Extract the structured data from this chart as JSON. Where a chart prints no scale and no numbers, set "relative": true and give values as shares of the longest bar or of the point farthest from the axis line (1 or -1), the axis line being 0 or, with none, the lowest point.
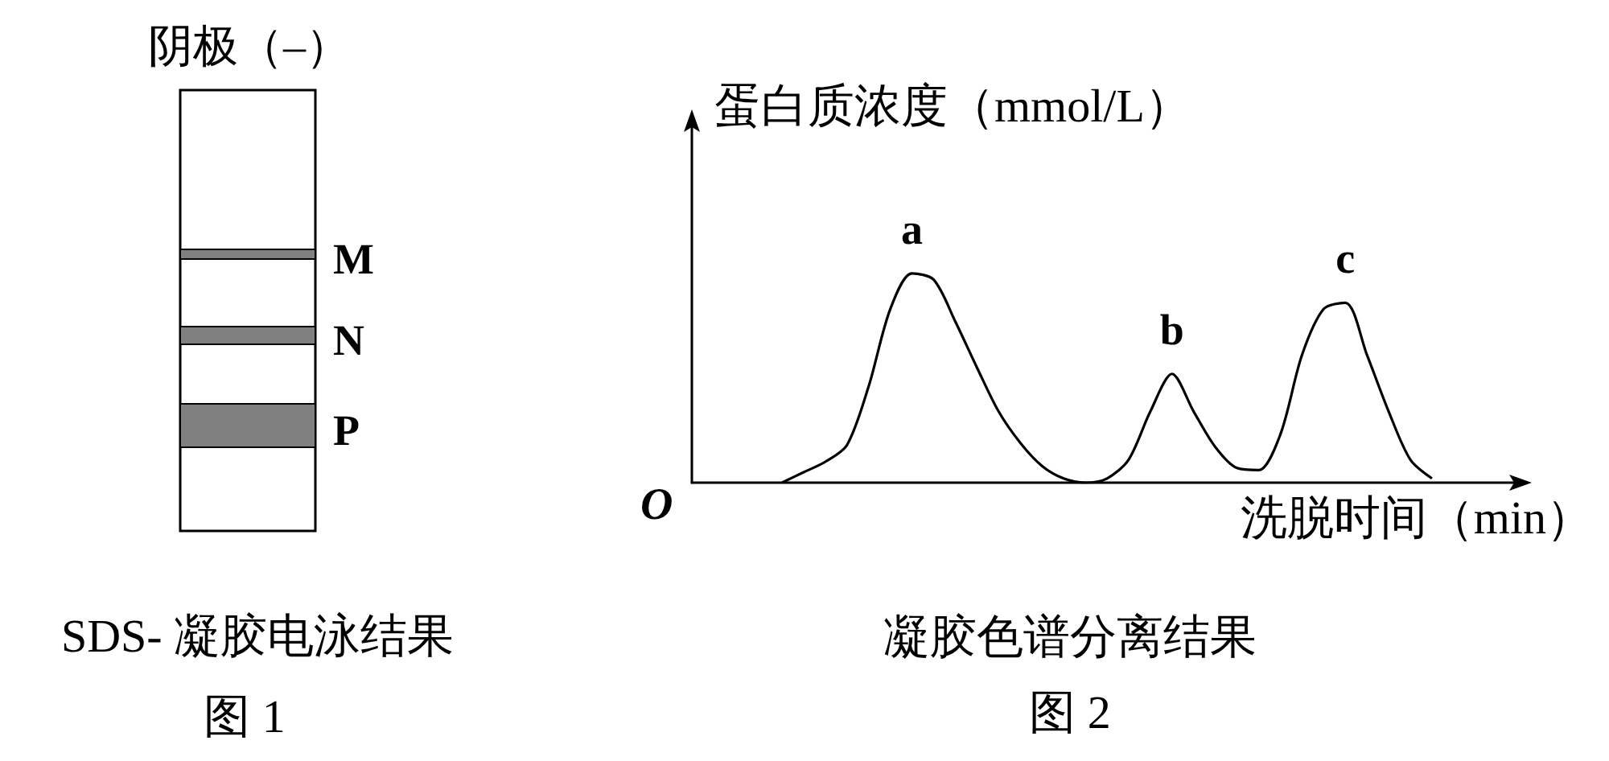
{
  "chart_data": [
    {
      "type": "other",
      "title": "SDS- 凝胶电泳结果",
      "subtitle": "图 1",
      "annotations": [
        "阴极（–）",
        "M",
        "N",
        "P"
      ]
    },
    {
      "type": "line",
      "relative": true,
      "title": "凝胶色谱分离结果",
      "subtitle": "图 2",
      "xlabel": "洗脱时间（min）",
      "ylabel": "蛋白质浓度（mmol/L）",
      "categories": [
        null,
        null,
        null,
        null,
        null,
        null,
        null,
        null,
        null,
        null,
        null,
        null,
        null,
        null,
        null,
        null,
        null,
        null,
        null,
        null,
        null,
        null,
        null,
        null,
        null,
        null,
        null,
        null,
        null,
        null,
        null
      ],
      "series": [
        {
          "color": "#000000",
          "values": [
            0,
            0.05,
            0.1,
            0.18,
            0.46,
            0.83,
            1,
            0.97,
            0.77,
            0.55,
            0.34,
            0.19,
            0.08,
            0.02,
            0,
            0.02,
            0.11,
            0.34,
            0.52,
            0.34,
            0.17,
            0.07,
            0.06,
            0.23,
            0.61,
            0.83,
            0.86,
            0.61,
            0.34,
            0.11,
            0.02
          ]
        }
      ],
      "annotations": [
        "O",
        {
          "text": "a",
          "y": 1
        },
        {
          "text": "b",
          "y": 0.52
        },
        {
          "text": "c",
          "y": 0.86
        }
      ],
      "grid": false
    }
  ]
}
